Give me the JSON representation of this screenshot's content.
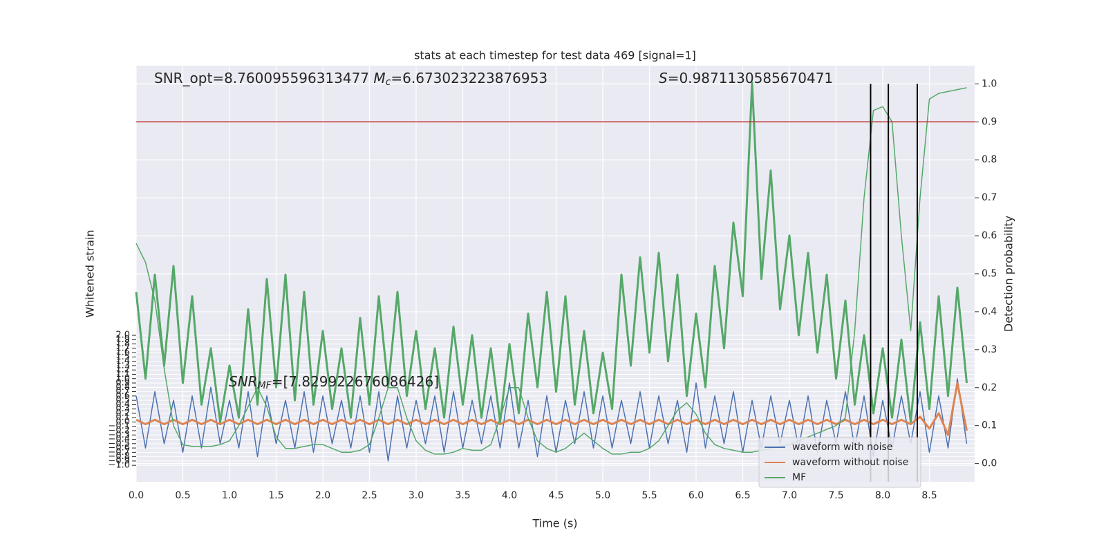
{
  "chart_data": {
    "type": "line",
    "title": "stats at each timestep for test data 469 [signal=1]",
    "xlabel": "Time (s)",
    "ylabel": "Whitened strain",
    "y2label": "Detection probability",
    "annotations": [
      {
        "parts": [
          "SNR_opt=8.760095596313477 ",
          "M",
          "c",
          "=6.673023223876953"
        ]
      },
      {
        "parts": [
          "S",
          "=0.9871130585670471"
        ]
      },
      {
        "parts": [
          "SNR",
          "MF",
          "=[7.829922676086426]"
        ]
      }
    ],
    "xlim": [
      0,
      8.985
    ],
    "ylim": [
      -1.38,
      8.22
    ],
    "y2lim": [
      -0.048,
      1.048
    ],
    "xticks": [
      {
        "value": 0,
        "label": "0.0"
      },
      0.5,
      {
        "value": 1,
        "label": "1.0"
      },
      1.5,
      {
        "value": 2,
        "label": "2.0"
      },
      2.5,
      {
        "value": 3,
        "label": "3.0"
      },
      3.5,
      {
        "value": 4,
        "label": "4.0"
      },
      4.5,
      {
        "value": 5,
        "label": "5.0"
      },
      5.5,
      {
        "value": 6,
        "label": "6.0"
      },
      6.5,
      {
        "value": 7,
        "label": "7.0"
      },
      7.5,
      {
        "value": 8,
        "label": "8.0"
      },
      8.5
    ],
    "yticks": [
      {
        "value": -1,
        "label": "−1.0"
      },
      {
        "value": -0.9,
        "label": "−0.9"
      },
      {
        "value": -0.8,
        "label": "−0.8"
      },
      {
        "value": -0.7,
        "label": "−0.7"
      },
      {
        "value": -0.6,
        "label": "−0.6"
      },
      {
        "value": -0.5,
        "label": "−0.5"
      },
      {
        "value": -0.4,
        "label": "−0.4"
      },
      {
        "value": -0.3,
        "label": "−0.3"
      },
      {
        "value": -0.2,
        "label": "−0.2"
      },
      {
        "value": -0.1,
        "label": "−0.1"
      },
      {
        "value": 0,
        "label": "0.0"
      },
      0.1,
      0.2,
      0.3,
      0.4,
      0.5,
      0.6,
      0.7,
      0.8,
      0.9,
      {
        "value": 1,
        "label": "1.0"
      },
      1.1,
      1.2,
      1.3,
      1.4,
      1.5,
      1.6,
      1.7,
      1.8,
      1.9,
      {
        "value": 2,
        "label": "2.0"
      }
    ],
    "y2ticks": [
      {
        "value": 0,
        "label": "0.0"
      },
      0.1,
      0.2,
      0.3,
      0.4,
      0.5,
      0.6,
      0.7,
      0.8,
      0.9,
      {
        "value": 1,
        "label": "1.0"
      }
    ],
    "grid": true,
    "legend": "lower right",
    "hline": {
      "value": 0.9,
      "axis": "y2",
      "color": "#c03030"
    },
    "vlines": {
      "values": [
        7.87,
        8.06,
        8.37
      ],
      "color": "#000000"
    },
    "x": [
      0,
      0.1,
      0.2,
      0.3,
      0.4,
      0.5,
      0.6,
      0.7,
      0.8,
      0.9,
      1,
      1.1,
      1.2,
      1.3,
      1.4,
      1.5,
      1.6,
      1.7,
      1.8,
      1.9,
      2,
      2.1,
      2.2,
      2.3,
      2.4,
      2.5,
      2.6,
      2.7,
      2.8,
      2.9,
      3,
      3.1,
      3.2,
      3.3,
      3.4,
      3.5,
      3.6,
      3.7,
      3.8,
      3.9,
      4,
      4.1,
      4.2,
      4.3,
      4.4,
      4.5,
      4.6,
      4.7,
      4.8,
      4.9,
      5,
      5.1,
      5.2,
      5.3,
      5.4,
      5.5,
      5.6,
      5.7,
      5.8,
      5.9,
      6,
      6.1,
      6.2,
      6.3,
      6.4,
      6.5,
      6.6,
      6.7,
      6.8,
      6.9,
      7,
      7.1,
      7.2,
      7.3,
      7.4,
      7.5,
      7.6,
      7.7,
      7.8,
      7.9,
      8,
      8.1,
      8.2,
      8.3,
      8.4,
      8.5,
      8.6,
      8.7,
      8.8,
      8.9
    ],
    "series": [
      {
        "name": "waveform with noise",
        "color": "#4c72b0",
        "width": 1.5,
        "values": [
          0.6,
          -0.6,
          0.7,
          -0.5,
          0.5,
          -0.7,
          0.6,
          -0.6,
          0.8,
          -0.5,
          0.5,
          -0.6,
          0.7,
          -0.8,
          0.6,
          -0.5,
          0.5,
          -0.6,
          0.7,
          -0.7,
          0.6,
          -0.5,
          0.5,
          -0.6,
          0.6,
          -0.7,
          0.7,
          -0.9,
          0.6,
          -0.6,
          0.5,
          -0.5,
          0.6,
          -0.7,
          0.7,
          -0.6,
          0.5,
          -0.5,
          0.6,
          -0.6,
          0.9,
          -0.6,
          0.5,
          -0.8,
          0.6,
          -0.7,
          0.5,
          -0.5,
          0.7,
          -0.6,
          0.6,
          -0.6,
          0.5,
          -0.5,
          0.7,
          -0.6,
          0.6,
          -0.5,
          0.5,
          -0.7,
          0.9,
          -0.6,
          0.6,
          -0.5,
          0.7,
          -0.7,
          0.5,
          -0.6,
          0.6,
          -0.5,
          0.5,
          -0.6,
          0.6,
          -0.7,
          0.5,
          -0.5,
          0.7,
          -0.6,
          0.6,
          -0.8,
          0.5,
          -0.6,
          0.6,
          -0.5,
          0.7,
          -0.7,
          0.6,
          -0.6,
          1.0,
          -0.5
        ]
      },
      {
        "name": "waveform without noise",
        "color": "#dd8452",
        "width": 3,
        "values": [
          0.05,
          -0.05,
          0.05,
          -0.05,
          0.05,
          -0.05,
          0.05,
          -0.05,
          0.05,
          -0.05,
          0.05,
          -0.05,
          0.05,
          -0.05,
          0.05,
          -0.05,
          0.05,
          -0.05,
          0.05,
          -0.05,
          0.05,
          -0.05,
          0.05,
          -0.05,
          0.05,
          -0.05,
          0.05,
          -0.05,
          0.05,
          -0.05,
          0.05,
          -0.05,
          0.05,
          -0.05,
          0.05,
          -0.05,
          0.05,
          -0.05,
          0.05,
          -0.05,
          0.05,
          -0.05,
          0.05,
          -0.05,
          0.05,
          -0.05,
          0.05,
          -0.05,
          0.05,
          -0.05,
          0.05,
          -0.05,
          0.05,
          -0.05,
          0.05,
          -0.05,
          0.05,
          -0.05,
          0.05,
          -0.05,
          0.05,
          -0.05,
          0.05,
          -0.05,
          0.05,
          -0.05,
          0.05,
          -0.05,
          0.05,
          -0.05,
          0.05,
          -0.05,
          0.05,
          -0.05,
          0.05,
          -0.05,
          0.05,
          -0.05,
          0.05,
          -0.05,
          0.05,
          -0.05,
          0.05,
          -0.05,
          0.12,
          -0.15,
          0.2,
          -0.3,
          0.9,
          -0.2
        ]
      },
      {
        "name": "MF",
        "color": "#55a868",
        "width": 3,
        "values": [
          3.0,
          1.0,
          3.4,
          1.3,
          3.6,
          0.9,
          2.9,
          0.4,
          1.7,
          0.0,
          1.3,
          0.1,
          2.6,
          0.4,
          3.3,
          0.8,
          3.4,
          0.5,
          3.0,
          0.4,
          2.1,
          0.3,
          1.7,
          0.1,
          2.4,
          0.4,
          2.9,
          0.8,
          3.0,
          0.6,
          2.1,
          0.3,
          1.7,
          0.1,
          2.2,
          0.4,
          2.0,
          0.1,
          1.7,
          0.0,
          1.8,
          0.2,
          2.5,
          0.8,
          3.0,
          0.7,
          2.9,
          0.4,
          2.1,
          0.2,
          1.6,
          0.3,
          3.4,
          1.3,
          3.8,
          1.6,
          3.9,
          1.4,
          3.4,
          0.6,
          2.5,
          0.8,
          3.6,
          1.7,
          4.6,
          2.9,
          7.83,
          3.3,
          5.8,
          2.6,
          4.3,
          2.0,
          3.9,
          1.6,
          3.4,
          1.0,
          2.8,
          0.4,
          2.0,
          0.2,
          1.7,
          0.1,
          1.9,
          0.0,
          2.3,
          0.3,
          2.9,
          0.6,
          3.1,
          0.9
        ]
      },
      {
        "axis": "y2",
        "color": "#55a868",
        "width": 1.5,
        "values": [
          0.58,
          0.53,
          0.43,
          0.25,
          0.1,
          0.05,
          0.045,
          0.045,
          0.045,
          0.05,
          0.06,
          0.1,
          0.15,
          0.2,
          0.15,
          0.07,
          0.04,
          0.04,
          0.045,
          0.05,
          0.05,
          0.04,
          0.03,
          0.03,
          0.035,
          0.05,
          0.12,
          0.2,
          0.2,
          0.12,
          0.06,
          0.035,
          0.025,
          0.025,
          0.03,
          0.04,
          0.035,
          0.035,
          0.05,
          0.12,
          0.2,
          0.2,
          0.12,
          0.06,
          0.04,
          0.03,
          0.04,
          0.06,
          0.08,
          0.06,
          0.04,
          0.025,
          0.025,
          0.03,
          0.03,
          0.04,
          0.06,
          0.1,
          0.14,
          0.16,
          0.13,
          0.08,
          0.05,
          0.04,
          0.035,
          0.03,
          0.03,
          0.035,
          0.04,
          0.045,
          0.05,
          0.06,
          0.07,
          0.08,
          0.09,
          0.1,
          0.12,
          0.35,
          0.7,
          0.93,
          0.94,
          0.9,
          0.6,
          0.35,
          0.7,
          0.96,
          0.975,
          0.98,
          0.985,
          0.99
        ]
      }
    ]
  }
}
